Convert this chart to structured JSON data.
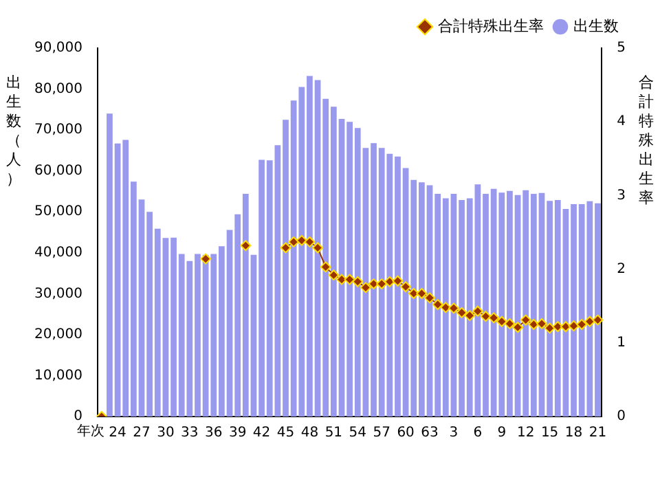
{
  "chart_data": {
    "type": "bar",
    "ylabel": "出生数（人）",
    "y2label": "合計特殊出生率",
    "xlabel": "年次",
    "categories": [
      null,
      null,
      "24",
      null,
      null,
      "27",
      null,
      null,
      "30",
      null,
      null,
      "33",
      null,
      null,
      "36",
      null,
      null,
      "39",
      null,
      null,
      "42",
      null,
      null,
      "45",
      null,
      null,
      "48",
      null,
      null,
      "51",
      null,
      null,
      "54",
      null,
      null,
      "57",
      null,
      null,
      "60",
      null,
      null,
      "63",
      null,
      null,
      "3",
      null,
      null,
      "6",
      null,
      null,
      "9",
      null,
      null,
      "12",
      null,
      null,
      "15",
      null,
      null,
      "18",
      null,
      null,
      "21"
    ],
    "series": [
      {
        "name": "出生数",
        "color": "#9999ee",
        "values": [
          null,
          74000,
          66700,
          67600,
          57400,
          53000,
          50000,
          45900,
          43600,
          43700,
          39700,
          38000,
          39700,
          39500,
          39700,
          41600,
          45600,
          49400,
          54400,
          39500,
          62700,
          62600,
          66300,
          72500,
          77200,
          80500,
          83200,
          82200,
          77600,
          75700,
          72700,
          72000,
          70500,
          65600,
          66800,
          65600,
          64200,
          63500,
          60700,
          57800,
          57200,
          56500,
          54400,
          53300,
          54400,
          52900,
          53300,
          56700,
          54400,
          55600,
          54700,
          55100,
          54100,
          55300,
          54400,
          54600,
          52700,
          52900,
          50700,
          51900,
          51900,
          52600,
          52100
        ]
      },
      {
        "name": "合計特殊出生率",
        "type": "line",
        "axis": "y2",
        "color": "#993300",
        "marker": "diamond",
        "values": [
          0,
          null,
          null,
          null,
          null,
          null,
          null,
          null,
          null,
          null,
          null,
          null,
          null,
          2.14,
          null,
          null,
          null,
          null,
          2.32,
          null,
          null,
          null,
          null,
          2.29,
          2.37,
          2.39,
          2.37,
          2.29,
          2.03,
          1.92,
          1.86,
          1.86,
          1.83,
          1.75,
          1.8,
          1.8,
          1.83,
          1.84,
          1.76,
          1.67,
          1.67,
          1.61,
          1.52,
          1.48,
          1.47,
          1.41,
          1.37,
          1.43,
          1.36,
          1.34,
          1.29,
          1.26,
          1.21,
          1.31,
          1.25,
          1.26,
          1.2,
          1.22,
          1.22,
          1.23,
          1.25,
          1.29,
          1.31
        ]
      }
    ],
    "ylim": [
      0,
      90000
    ],
    "yticks": [
      {
        "value": 0,
        "label": "0"
      },
      {
        "value": 10000,
        "label": "10,000"
      },
      {
        "value": 20000,
        "label": "20,000"
      },
      {
        "value": 30000,
        "label": "30,000"
      },
      {
        "value": 40000,
        "label": "40,000"
      },
      {
        "value": 50000,
        "label": "50,000"
      },
      {
        "value": 60000,
        "label": "60,000"
      },
      {
        "value": 70000,
        "label": "70,000"
      },
      {
        "value": 80000,
        "label": "80,000"
      },
      {
        "value": 90000,
        "label": "90,000"
      }
    ],
    "y2lim": [
      0,
      5
    ],
    "y2ticks": [
      0,
      1,
      2,
      3,
      4,
      5
    ],
    "grid": false,
    "legend": "top right"
  }
}
